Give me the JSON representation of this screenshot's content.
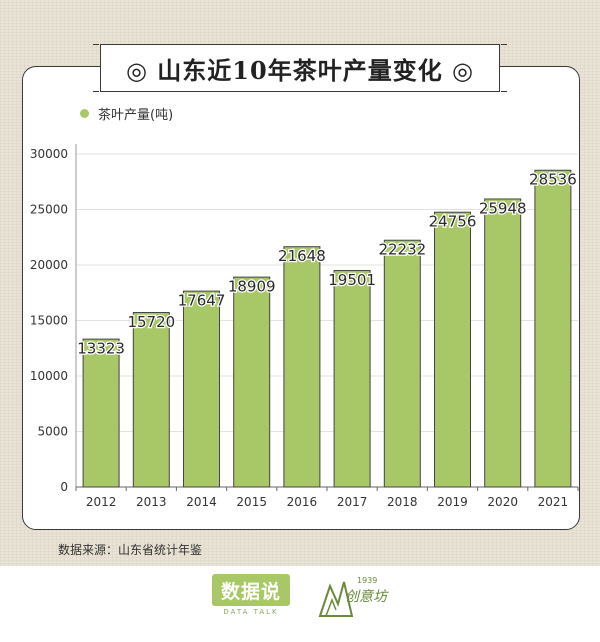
{
  "header": {
    "title": "◎ 山东近10年茶叶产量变化 ◎"
  },
  "chart_data": {
    "type": "bar",
    "title": "山东近10年茶叶产量变化",
    "categories": [
      "2012",
      "2013",
      "2014",
      "2015",
      "2016",
      "2017",
      "2018",
      "2019",
      "2020",
      "2021"
    ],
    "series": [
      {
        "name": "茶叶产量(吨)",
        "values": [
          13323,
          15720,
          17647,
          18909,
          21648,
          19501,
          22232,
          24756,
          25948,
          28536
        ]
      }
    ],
    "ylim": [
      0,
      30000
    ],
    "yticks": [
      0,
      5000,
      10000,
      15000,
      20000,
      25000,
      30000
    ],
    "xlabel": "",
    "ylabel": "",
    "grid": true,
    "legend_position": "top-left",
    "bar_color": "#a8c766"
  },
  "source": {
    "text": "数据来源：山东省统计年鉴"
  },
  "footer": {
    "brand_main": "数据说",
    "brand_sub": "DATA TALK",
    "brand2_year": "1939",
    "brand2_name": "创意坊"
  }
}
